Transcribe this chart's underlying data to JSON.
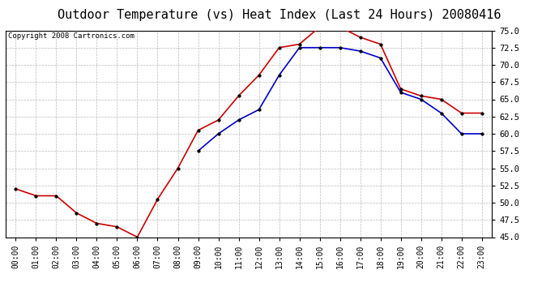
{
  "title": "Outdoor Temperature (vs) Heat Index (Last 24 Hours) 20080416",
  "copyright_text": "Copyright 2008 Cartronics.com",
  "x_labels": [
    "00:00",
    "01:00",
    "02:00",
    "03:00",
    "04:00",
    "05:00",
    "06:00",
    "07:00",
    "08:00",
    "09:00",
    "10:00",
    "11:00",
    "12:00",
    "13:00",
    "14:00",
    "15:00",
    "16:00",
    "17:00",
    "18:00",
    "19:00",
    "20:00",
    "21:00",
    "22:00",
    "23:00"
  ],
  "temp_red": [
    52.0,
    51.0,
    51.0,
    48.5,
    47.0,
    46.5,
    45.0,
    50.5,
    55.0,
    60.5,
    62.0,
    65.5,
    68.5,
    72.5,
    73.0,
    75.5,
    75.5,
    74.0,
    73.0,
    66.5,
    65.5,
    65.0,
    63.0,
    63.0
  ],
  "heat_blue": [
    null,
    null,
    null,
    null,
    null,
    null,
    null,
    null,
    null,
    57.5,
    60.0,
    62.0,
    63.5,
    68.5,
    72.5,
    72.5,
    72.5,
    72.0,
    71.0,
    66.0,
    65.0,
    63.0,
    60.0,
    60.0
  ],
  "ylim": [
    45.0,
    75.0
  ],
  "yticks": [
    45.0,
    47.5,
    50.0,
    52.5,
    55.0,
    57.5,
    60.0,
    62.5,
    65.0,
    67.5,
    70.0,
    72.5,
    75.0
  ],
  "red_color": "#cc0000",
  "blue_color": "#0000cc",
  "grid_color": "#bbbbbb",
  "bg_color": "#ffffff",
  "plot_bg_color": "#ffffff",
  "title_fontsize": 11,
  "copyright_fontsize": 6.5,
  "tick_fontsize": 7,
  "ytick_fontsize": 7.5
}
